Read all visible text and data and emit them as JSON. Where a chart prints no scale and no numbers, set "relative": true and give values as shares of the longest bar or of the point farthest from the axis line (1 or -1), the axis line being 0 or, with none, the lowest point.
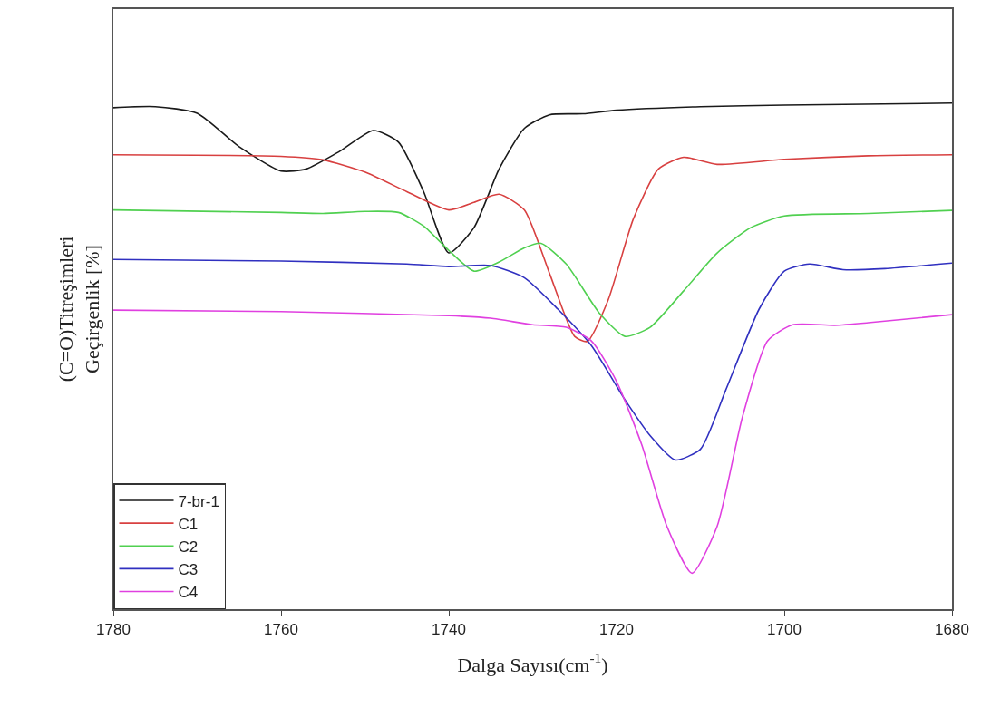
{
  "chart_data": {
    "type": "line",
    "relative": true,
    "xlabel": "Dalga Sayısı(cm$^{-1}$)",
    "ylabel": "(C=O)Titreşimleri\nGeçirgenlik [%]",
    "xlim": [
      1780,
      1680
    ],
    "xticks": [
      1780,
      1760,
      1740,
      1720,
      1700,
      1680
    ],
    "legend": "bottom left",
    "marker": "none",
    "line_style": "solid",
    "series": [
      {
        "name": "7-br-1",
        "color": "#1a1a1a",
        "x": [
          1780,
          1775,
          1770,
          1765,
          1760,
          1757,
          1753,
          1749,
          1746,
          1743,
          1740,
          1737,
          1734,
          1731,
          1728,
          1724,
          1720,
          1710,
          1700,
          1680
        ],
        "values": [
          0.991,
          0.993,
          0.98,
          0.914,
          0.866,
          0.87,
          0.905,
          0.946,
          0.923,
          0.825,
          0.704,
          0.754,
          0.87,
          0.95,
          0.977,
          0.979,
          0.986,
          0.993,
          0.996,
          1.0
        ]
      },
      {
        "name": "C1",
        "color": "#d84040",
        "x": [
          1780,
          1760,
          1755,
          1750,
          1745,
          1740,
          1737,
          1734,
          1731,
          1728,
          1725,
          1723.5,
          1721,
          1718,
          1715,
          1712,
          1708,
          1700,
          1690,
          1680
        ],
        "values": [
          0.898,
          0.895,
          0.888,
          0.864,
          0.825,
          0.789,
          0.804,
          0.82,
          0.789,
          0.664,
          0.539,
          0.529,
          0.611,
          0.771,
          0.87,
          0.893,
          0.879,
          0.889,
          0.896,
          0.898
        ]
      },
      {
        "name": "C2",
        "color": "#50d050",
        "x": [
          1780,
          1760,
          1755,
          1750,
          1746,
          1743,
          1740,
          1737,
          1734,
          1731,
          1729,
          1726,
          1722,
          1719,
          1716,
          1712,
          1708,
          1704,
          1700,
          1690,
          1680
        ],
        "values": [
          0.789,
          0.784,
          0.782,
          0.786,
          0.784,
          0.757,
          0.709,
          0.668,
          0.686,
          0.714,
          0.723,
          0.682,
          0.584,
          0.539,
          0.557,
          0.629,
          0.704,
          0.754,
          0.777,
          0.782,
          0.788
        ]
      },
      {
        "name": "C3",
        "color": "#3030c0",
        "x": [
          1780,
          1760,
          1745,
          1740,
          1735,
          1731,
          1727,
          1723,
          1719,
          1716,
          1713,
          1710,
          1707,
          1703,
          1700,
          1697,
          1693,
          1688,
          1680
        ],
        "values": [
          0.691,
          0.688,
          0.682,
          0.677,
          0.679,
          0.655,
          0.593,
          0.521,
          0.414,
          0.343,
          0.295,
          0.316,
          0.432,
          0.593,
          0.668,
          0.682,
          0.671,
          0.673,
          0.684
        ]
      },
      {
        "name": "C4",
        "color": "#e040e0",
        "x": [
          1780,
          1760,
          1740,
          1735,
          1730,
          1726,
          1723,
          1720,
          1717,
          1714,
          1711,
          1708,
          1705,
          1702,
          1699,
          1694,
          1690,
          1680
        ],
        "values": [
          0.591,
          0.588,
          0.58,
          0.575,
          0.562,
          0.557,
          0.53,
          0.45,
          0.325,
          0.164,
          0.071,
          0.164,
          0.379,
          0.53,
          0.562,
          0.561,
          0.566,
          0.582
        ]
      }
    ]
  }
}
